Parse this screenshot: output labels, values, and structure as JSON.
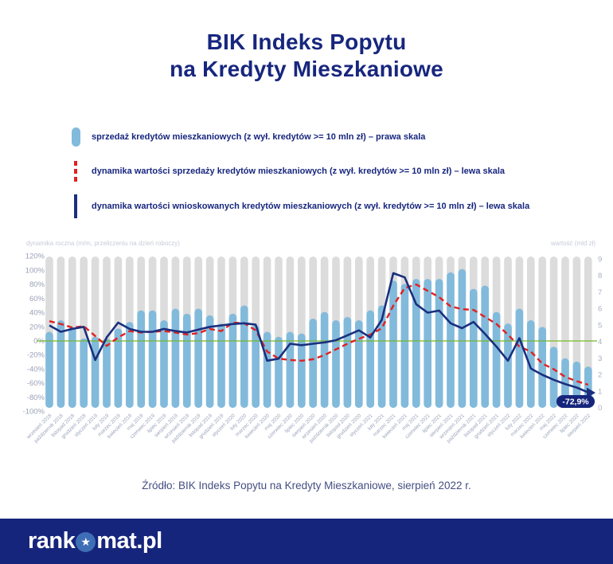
{
  "title": {
    "line1": "BIK Indeks Popytu",
    "line2": "na Kredyty Mieszkaniowe"
  },
  "legend": [
    {
      "label": "sprzedaż kredytów mieszkaniowych (z wył. kredytów >= 10 mln zł) – prawa skala"
    },
    {
      "label": "dynamika wartości sprzedaży kredytów mieszkaniowych (z wył. kredytów >= 10 mln zł) – lewa skala"
    },
    {
      "label": "dynamika wartości wnioskowanych kredytów mieszkaniowych (z wył. kredytów >= 10 mln zł)  – lewa skala"
    }
  ],
  "chart_data": {
    "type": "combo (bar + 2 lines, dual axis)",
    "left_axis": {
      "label": "dynamika roczna (m/m, przeliczeniu na dzień roboczy)",
      "tick_values": [
        120,
        100,
        80,
        60,
        40,
        20,
        0,
        -20,
        -40,
        -60,
        -80,
        -100
      ],
      "unit": "%",
      "range": [
        -100,
        120
      ]
    },
    "right_axis": {
      "label": "wartość (mld zł)",
      "tick_values": [
        9,
        8,
        7,
        6,
        5,
        4,
        3,
        2,
        1,
        0
      ],
      "range": [
        0,
        9
      ]
    },
    "grid": false,
    "zero_line_value": 0,
    "categories": [
      "wrzesień 2018",
      "październik 2018",
      "listopad 2018",
      "grudzień 2018",
      "styczeń 2019",
      "luty 2019",
      "marzec 2019",
      "kwiecień 2019",
      "maj 2019",
      "czerwiec 2019",
      "lipiec 2019",
      "sierpień 2019",
      "wrzesień 2019",
      "październik 2019",
      "listopad 2019",
      "grudzień 2019",
      "styczeń 2020",
      "luty 2020",
      "marzec 2020",
      "kwiecień 2020",
      "maj 2020",
      "czerwiec 2020",
      "lipiec 2020",
      "sierpień 2020",
      "wrzesień 2020",
      "październik 2020",
      "listopad 2020",
      "grudzień 2020",
      "styczeń 2021",
      "luty 2021",
      "marzec 2021",
      "kwiecień 2021",
      "maj 2021",
      "czerwiec 2021",
      "lipiec 2021",
      "sierpień 2021",
      "wrzesień 2021",
      "październik 2021",
      "listopad 2021",
      "grudzień 2021",
      "styczeń 2022",
      "luty 2022",
      "marzec 2022",
      "kwiecień 2022",
      "maj 2022",
      "czerwiec 2022",
      "lipiec 2022",
      "sierpień 2022"
    ],
    "series": [
      {
        "name": "sprzedaż kredytów mieszkaniowych (mld zł, prawa skala)",
        "type": "bar",
        "axis": "right",
        "values": [
          4.6,
          5.3,
          4.9,
          4.2,
          4.3,
          4.2,
          4.8,
          5.2,
          5.9,
          5.9,
          5.3,
          6.0,
          5.7,
          6.0,
          5.6,
          5.1,
          5.7,
          6.2,
          5.0,
          4.6,
          4.3,
          4.6,
          4.5,
          5.4,
          5.8,
          5.3,
          5.5,
          5.3,
          5.9,
          6.2,
          7.7,
          7.5,
          7.8,
          7.8,
          7.8,
          8.2,
          8.4,
          7.2,
          7.4,
          5.8,
          5.1,
          6.0,
          5.3,
          4.9,
          3.7,
          3.0,
          2.8,
          2.5
        ]
      },
      {
        "name": "dynamika wartości sprzedaży kredytów mieszkaniowych (%, lewa skala)",
        "type": "line",
        "style": "dashed",
        "axis": "left",
        "values": [
          28,
          24,
          19,
          21,
          7,
          -7,
          5,
          14,
          12,
          13,
          14,
          12,
          9,
          11,
          17,
          14,
          26,
          25,
          15,
          -15,
          -25,
          -27,
          -28,
          -26,
          -20,
          -12,
          -4,
          3,
          9,
          18,
          50,
          75,
          80,
          71,
          62,
          49,
          45,
          44,
          34,
          24,
          9,
          -8,
          -15,
          -32,
          -40,
          -51,
          -57,
          -62
        ]
      },
      {
        "name": "dynamika wartości wnioskowanych kredytów mieszkaniowych (%, lewa skala)",
        "type": "line",
        "style": "solid",
        "axis": "left",
        "values": [
          22,
          13,
          17,
          20,
          -27,
          5,
          26,
          17,
          13,
          13,
          17,
          14,
          12,
          16,
          20,
          22,
          24,
          25,
          23,
          -28,
          -25,
          -4,
          -6,
          -4,
          -2,
          1,
          8,
          15,
          5,
          30,
          96,
          90,
          52,
          40,
          43,
          25,
          18,
          27,
          10,
          -8,
          -28,
          4,
          -39,
          -48,
          -55,
          -61,
          -66,
          -72.9
        ]
      }
    ],
    "annotation": {
      "text": "-72,9%",
      "category": "sierpień 2022",
      "value": -72.9,
      "series": "dynamika wartości wnioskowanych kredytów mieszkaniowych"
    }
  },
  "colors": {
    "accent_navy": "#17267e",
    "bar_blue": "#82badb",
    "bar_gray": "#dcdcdc",
    "line_red": "#e02222",
    "line_navy": "#1b2f7e",
    "zero_green": "#76b82a",
    "badge_bg": "#16257c",
    "footer_bar": "#16257c",
    "star_circle": "#3e6eb5"
  },
  "footer": {
    "source": "Źródło: BIK Indeks Popytu na Kredyty Mieszkaniowe, sierpień 2022 r."
  },
  "brand": {
    "logo_prefix": "rank",
    "logo_suffix": "mat.pl",
    "star": "★"
  }
}
